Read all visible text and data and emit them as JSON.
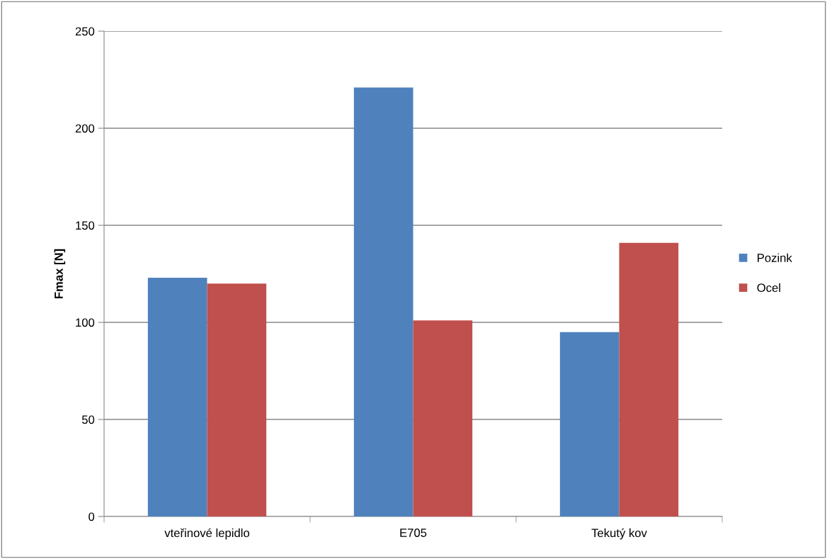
{
  "chart_data": {
    "type": "bar",
    "ylabel": "Fmax [N]",
    "categories": [
      "vteřinové lepidlo",
      "E705",
      "Tekutý kov"
    ],
    "series": [
      {
        "name": "Pozink",
        "color": "#4f81bd",
        "values": [
          123,
          221,
          95
        ]
      },
      {
        "name": "Ocel",
        "color": "#c0504d",
        "values": [
          120,
          101,
          141
        ]
      }
    ],
    "ylim": [
      0,
      250
    ],
    "yticks": [
      0,
      50,
      100,
      150,
      200,
      250
    ],
    "grid": "y",
    "legend": "right"
  }
}
